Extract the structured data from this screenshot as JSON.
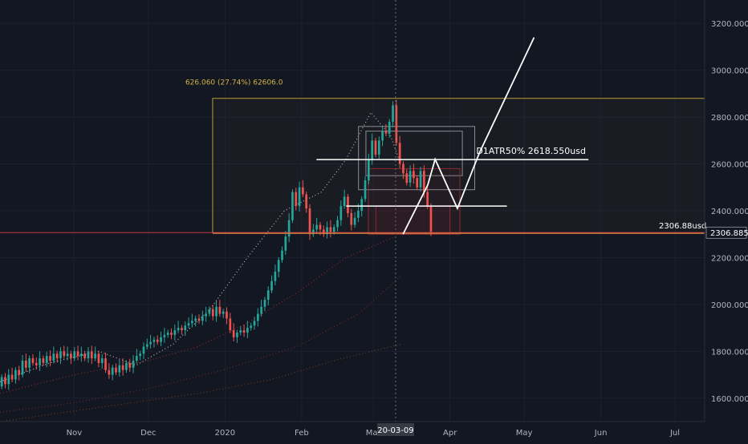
{
  "chart_data": {
    "type": "candlestick",
    "title": "",
    "y_axis": {
      "side": "right",
      "range": [
        1500,
        3300
      ],
      "ticks": [
        {
          "value": 3200,
          "label": "3200.000"
        },
        {
          "value": 3000,
          "label": "3000.000"
        },
        {
          "value": 2800,
          "label": "2800.000"
        },
        {
          "value": 2600,
          "label": "2600.000"
        },
        {
          "value": 2400,
          "label": "2400.000"
        },
        {
          "value": 2200,
          "label": "2200.000"
        },
        {
          "value": 2000,
          "label": "2000.000"
        },
        {
          "value": 1800,
          "label": "1800.000"
        },
        {
          "value": 1600,
          "label": "1600.000"
        }
      ],
      "current_price": {
        "value": 2306.885,
        "label": "2306.885"
      }
    },
    "x_axis": {
      "range_days": [
        0,
        285
      ],
      "ticks": [
        {
          "day": 30,
          "label": "Nov"
        },
        {
          "day": 60,
          "label": "Dec"
        },
        {
          "day": 91,
          "label": "2020"
        },
        {
          "day": 122,
          "label": "Feb"
        },
        {
          "day": 151,
          "label": "Mar"
        },
        {
          "day": 182,
          "label": "Apr"
        },
        {
          "day": 212,
          "label": "May"
        },
        {
          "day": 243,
          "label": "Jun"
        },
        {
          "day": 273,
          "label": "Jul"
        }
      ],
      "crosshair": {
        "day": 160,
        "label": "20-03-09"
      }
    },
    "candles": [
      {
        "o": 1650,
        "c": 1690
      },
      {
        "o": 1690,
        "c": 1660
      },
      {
        "o": 1660,
        "c": 1700
      },
      {
        "o": 1700,
        "c": 1680
      },
      {
        "o": 1680,
        "c": 1720
      },
      {
        "o": 1720,
        "c": 1700
      },
      {
        "o": 1700,
        "c": 1760
      },
      {
        "o": 1760,
        "c": 1730
      },
      {
        "o": 1730,
        "c": 1770
      },
      {
        "o": 1770,
        "c": 1750
      },
      {
        "o": 1750,
        "c": 1740
      },
      {
        "o": 1740,
        "c": 1770
      },
      {
        "o": 1770,
        "c": 1750
      },
      {
        "o": 1750,
        "c": 1780
      },
      {
        "o": 1780,
        "c": 1760
      },
      {
        "o": 1760,
        "c": 1790
      },
      {
        "o": 1790,
        "c": 1770
      },
      {
        "o": 1770,
        "c": 1800
      },
      {
        "o": 1800,
        "c": 1780
      },
      {
        "o": 1780,
        "c": 1790
      },
      {
        "o": 1790,
        "c": 1770
      },
      {
        "o": 1770,
        "c": 1800
      },
      {
        "o": 1800,
        "c": 1780
      },
      {
        "o": 1780,
        "c": 1790
      },
      {
        "o": 1790,
        "c": 1770
      },
      {
        "o": 1770,
        "c": 1800
      },
      {
        "o": 1800,
        "c": 1770
      },
      {
        "o": 1770,
        "c": 1790
      },
      {
        "o": 1790,
        "c": 1750
      },
      {
        "o": 1750,
        "c": 1770
      },
      {
        "o": 1770,
        "c": 1720
      },
      {
        "o": 1720,
        "c": 1700
      },
      {
        "o": 1700,
        "c": 1730
      },
      {
        "o": 1730,
        "c": 1710
      },
      {
        "o": 1710,
        "c": 1740
      },
      {
        "o": 1740,
        "c": 1720
      },
      {
        "o": 1720,
        "c": 1750
      },
      {
        "o": 1750,
        "c": 1730
      },
      {
        "o": 1730,
        "c": 1760
      },
      {
        "o": 1760,
        "c": 1780
      },
      {
        "o": 1780,
        "c": 1790
      },
      {
        "o": 1790,
        "c": 1820
      },
      {
        "o": 1820,
        "c": 1830
      },
      {
        "o": 1830,
        "c": 1840
      },
      {
        "o": 1840,
        "c": 1850
      },
      {
        "o": 1850,
        "c": 1840
      },
      {
        "o": 1840,
        "c": 1860
      },
      {
        "o": 1860,
        "c": 1870
      },
      {
        "o": 1870,
        "c": 1880
      },
      {
        "o": 1880,
        "c": 1870
      },
      {
        "o": 1870,
        "c": 1890
      },
      {
        "o": 1890,
        "c": 1900
      },
      {
        "o": 1900,
        "c": 1890
      },
      {
        "o": 1890,
        "c": 1910
      },
      {
        "o": 1910,
        "c": 1920
      },
      {
        "o": 1920,
        "c": 1930
      },
      {
        "o": 1930,
        "c": 1940
      },
      {
        "o": 1940,
        "c": 1930
      },
      {
        "o": 1930,
        "c": 1950
      },
      {
        "o": 1950,
        "c": 1960
      },
      {
        "o": 1960,
        "c": 1980
      },
      {
        "o": 1980,
        "c": 1950
      },
      {
        "o": 1950,
        "c": 1990
      },
      {
        "o": 1990,
        "c": 1960
      },
      {
        "o": 1960,
        "c": 1970
      },
      {
        "o": 1970,
        "c": 1940
      },
      {
        "o": 1940,
        "c": 1890
      },
      {
        "o": 1890,
        "c": 1860
      },
      {
        "o": 1860,
        "c": 1880
      },
      {
        "o": 1880,
        "c": 1890
      },
      {
        "o": 1890,
        "c": 1880
      },
      {
        "o": 1880,
        "c": 1900
      },
      {
        "o": 1900,
        "c": 1910
      },
      {
        "o": 1910,
        "c": 1930
      },
      {
        "o": 1930,
        "c": 1960
      },
      {
        "o": 1960,
        "c": 1990
      },
      {
        "o": 1990,
        "c": 2020
      },
      {
        "o": 2020,
        "c": 2060
      },
      {
        "o": 2060,
        "c": 2100
      },
      {
        "o": 2100,
        "c": 2140
      },
      {
        "o": 2140,
        "c": 2190
      },
      {
        "o": 2190,
        "c": 2230
      },
      {
        "o": 2230,
        "c": 2290
      },
      {
        "o": 2290,
        "c": 2360
      },
      {
        "o": 2360,
        "c": 2480
      },
      {
        "o": 2480,
        "c": 2420
      },
      {
        "o": 2420,
        "c": 2500
      },
      {
        "o": 2500,
        "c": 2470
      },
      {
        "o": 2470,
        "c": 2410
      },
      {
        "o": 2410,
        "c": 2300
      },
      {
        "o": 2300,
        "c": 2320
      },
      {
        "o": 2320,
        "c": 2340
      },
      {
        "o": 2340,
        "c": 2320
      },
      {
        "o": 2320,
        "c": 2300
      },
      {
        "o": 2300,
        "c": 2330
      },
      {
        "o": 2330,
        "c": 2310
      },
      {
        "o": 2310,
        "c": 2330
      },
      {
        "o": 2330,
        "c": 2360
      },
      {
        "o": 2360,
        "c": 2420
      },
      {
        "o": 2420,
        "c": 2460
      },
      {
        "o": 2460,
        "c": 2390
      },
      {
        "o": 2390,
        "c": 2340
      },
      {
        "o": 2340,
        "c": 2370
      },
      {
        "o": 2370,
        "c": 2400
      },
      {
        "o": 2400,
        "c": 2450
      },
      {
        "o": 2450,
        "c": 2530
      },
      {
        "o": 2530,
        "c": 2620
      },
      {
        "o": 2620,
        "c": 2700
      },
      {
        "o": 2700,
        "c": 2640
      },
      {
        "o": 2640,
        "c": 2700
      },
      {
        "o": 2700,
        "c": 2740
      },
      {
        "o": 2740,
        "c": 2730
      },
      {
        "o": 2730,
        "c": 2780
      },
      {
        "o": 2780,
        "c": 2850
      },
      {
        "o": 2850,
        "c": 2690
      },
      {
        "o": 2690,
        "c": 2600
      },
      {
        "o": 2600,
        "c": 2560
      },
      {
        "o": 2560,
        "c": 2520
      },
      {
        "o": 2520,
        "c": 2570
      },
      {
        "o": 2570,
        "c": 2540
      },
      {
        "o": 2540,
        "c": 2500
      },
      {
        "o": 2500,
        "c": 2570
      },
      {
        "o": 2570,
        "c": 2480
      },
      {
        "o": 2480,
        "c": 2420
      },
      {
        "o": 2420,
        "c": 2310
      }
    ],
    "candle_start_day": 0,
    "candle_step_days": 1.4,
    "moving_averages": [
      {
        "style": "dotted",
        "color": "#b8b8b8",
        "points": [
          [
            0,
            1670
          ],
          [
            20,
            1750
          ],
          [
            40,
            1800
          ],
          [
            55,
            1740
          ],
          [
            70,
            1830
          ],
          [
            85,
            1980
          ],
          [
            100,
            2200
          ],
          [
            115,
            2400
          ],
          [
            130,
            2480
          ],
          [
            140,
            2620
          ],
          [
            150,
            2820
          ],
          [
            158,
            2720
          ],
          [
            162,
            2600
          ]
        ]
      },
      {
        "style": "dotted",
        "color": "#8a2b2b",
        "points": [
          [
            0,
            1620
          ],
          [
            30,
            1700
          ],
          [
            60,
            1760
          ],
          [
            80,
            1820
          ],
          [
            100,
            1920
          ],
          [
            120,
            2050
          ],
          [
            140,
            2200
          ],
          [
            160,
            2290
          ]
        ]
      },
      {
        "style": "dotted",
        "color": "#6e2a2a",
        "points": [
          [
            0,
            1540
          ],
          [
            30,
            1580
          ],
          [
            60,
            1640
          ],
          [
            90,
            1720
          ],
          [
            120,
            1820
          ],
          [
            145,
            1960
          ],
          [
            162,
            2120
          ]
        ]
      },
      {
        "style": "dotted",
        "color": "#6a3a1a",
        "points": [
          [
            0,
            1500
          ],
          [
            40,
            1560
          ],
          [
            80,
            1620
          ],
          [
            110,
            1680
          ],
          [
            135,
            1760
          ],
          [
            162,
            1830
          ]
        ]
      }
    ],
    "annotations": {
      "measure_box": {
        "day_start": 86,
        "day_end": 285,
        "price_low": 2306,
        "price_high": 2880,
        "color": "#b89b39",
        "label": "626.060 (27.74%) 62606.0"
      },
      "horizontal_line_red": {
        "price": 2306.885,
        "color": "#e33b4b"
      },
      "horizontal_line_orange": {
        "price": 2306.885,
        "color": "#d0883e"
      },
      "current_price_line_label": "2306.88usd",
      "atr_line": {
        "day_start": 128,
        "day_end": 238,
        "price": 2618.55,
        "label": "D1ATR50%   2618.550usd"
      },
      "support_line": {
        "day_start": 140,
        "day_end": 205,
        "price": 2420
      },
      "grey_boxes": [
        {
          "day_start": 145,
          "day_end": 192,
          "price_low": 2490,
          "price_high": 2760
        },
        {
          "day_start": 148,
          "day_end": 187,
          "price_low": 2550,
          "price_high": 2740
        }
      ],
      "red_boxes": [
        {
          "day_start": 149,
          "day_end": 186,
          "price_low": 2300,
          "price_high": 2580
        },
        {
          "day_start": 152,
          "day_end": 182,
          "price_low": 2300,
          "price_high": 2420
        }
      ],
      "projection_path": [
        [
          163,
          2300
        ],
        [
          173,
          2510
        ],
        [
          176,
          2620
        ],
        [
          185,
          2410
        ],
        [
          194,
          2650
        ],
        [
          216,
          3140
        ]
      ]
    }
  }
}
